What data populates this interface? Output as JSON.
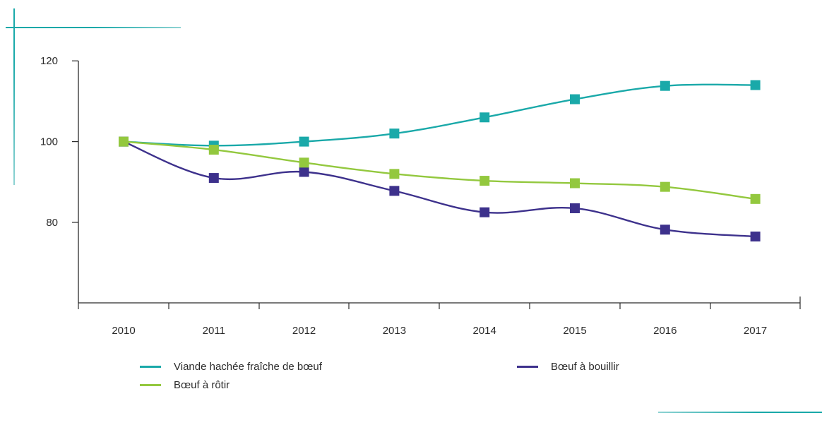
{
  "chart_data": {
    "type": "line",
    "x": [
      "2010",
      "2011",
      "2012",
      "2013",
      "2014",
      "2015",
      "2016",
      "2017"
    ],
    "yticks": [
      80,
      100,
      120
    ],
    "ylim": [
      60,
      122
    ],
    "grid": false,
    "legend_position": "bottom",
    "series": [
      {
        "name": "Viande hachée fraîche de bœuf",
        "color": "#1aa9a9",
        "values": [
          100,
          99,
          100,
          102,
          106,
          110.5,
          113.8,
          114
        ]
      },
      {
        "name": "Bœuf à bouillir",
        "color": "#3d318c",
        "values": [
          100,
          91,
          92.5,
          87.8,
          82.5,
          83.5,
          78.2,
          76.5
        ]
      },
      {
        "name": "Bœuf à rôtir",
        "color": "#93c83e",
        "values": [
          100,
          98,
          94.8,
          92,
          90.3,
          89.7,
          88.8,
          85.8
        ]
      }
    ]
  },
  "decor": {
    "accent_color": "#1aa9a9"
  }
}
